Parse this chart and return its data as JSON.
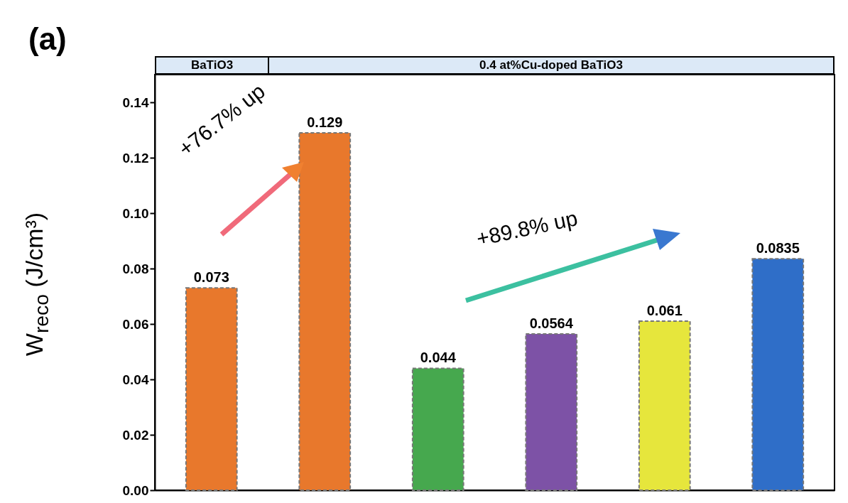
{
  "chart_data": {
    "type": "bar",
    "title": "(a)",
    "ylabel": "W$_{reco}$ (J/cm³)",
    "categories": [
      null,
      null,
      null,
      null,
      null,
      null
    ],
    "values": [
      0.073,
      0.129,
      0.044,
      0.0564,
      0.061,
      0.0835
    ],
    "colors": [
      "#e8782c",
      "#e8782c",
      "#46a84e",
      "#7d52a6",
      "#e6e63c",
      "#2f6ec8"
    ],
    "ylim": [
      0,
      0.15
    ],
    "yticks": [
      {
        "value": 0,
        "label": "0.00"
      },
      0.02,
      0.04,
      0.06,
      0.08,
      {
        "value": 0.1,
        "label": "0.10"
      },
      0.12,
      0.14
    ],
    "data_labels": true,
    "tick_labels": "y",
    "annotations": [
      "BaTiO3",
      "0.4 at%Cu-doped BaTiO3",
      "+76.7% up",
      "+89.8% up"
    ]
  }
}
